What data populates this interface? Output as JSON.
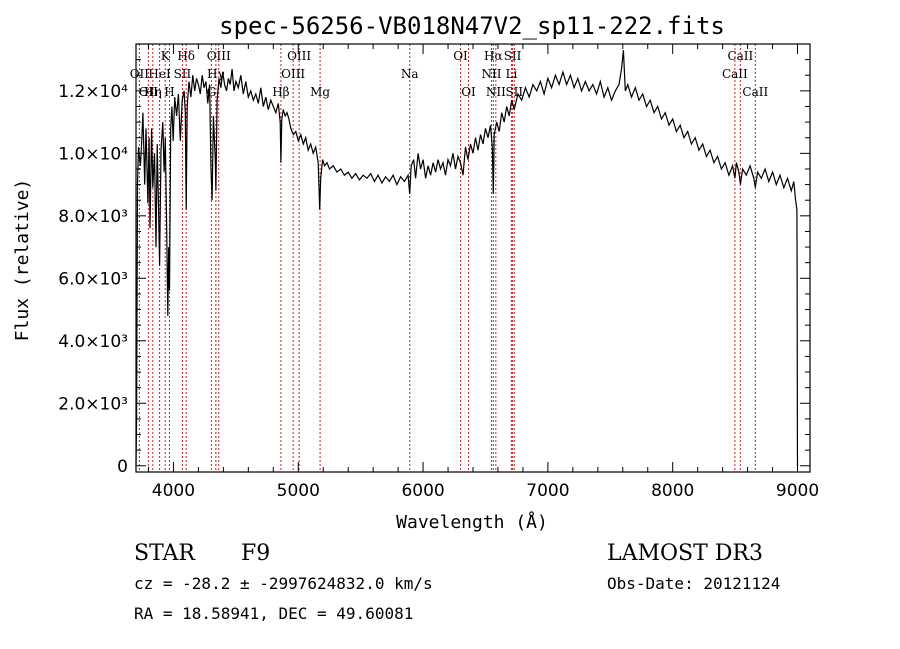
{
  "chart_data": {
    "type": "line",
    "title": "spec-56256-VB018N47V2_sp11-222.fits",
    "xlabel": "Wavelength (Å)",
    "ylabel": "Flux (relative)",
    "xlim": [
      3700,
      9100
    ],
    "ylim": [
      -200,
      13500
    ],
    "xticks": [
      {
        "value": 4000,
        "label": "4000"
      },
      {
        "value": 5000,
        "label": "5000"
      },
      {
        "value": 6000,
        "label": "6000"
      },
      {
        "value": 7000,
        "label": "7000"
      },
      {
        "value": 8000,
        "label": "8000"
      },
      {
        "value": 9000,
        "label": "9000"
      }
    ],
    "yticks": [
      {
        "value": 0,
        "label": "0"
      },
      {
        "value": 2000,
        "label": "2.0×10³"
      },
      {
        "value": 4000,
        "label": "4.0×10³"
      },
      {
        "value": 6000,
        "label": "6.0×10³"
      },
      {
        "value": 8000,
        "label": "8.0×10³"
      },
      {
        "value": 10000,
        "label": "1.0×10⁴"
      },
      {
        "value": 12000,
        "label": "1.2×10⁴"
      }
    ],
    "grid": false,
    "series": [
      {
        "color": "#000000",
        "points": [
          [
            3700,
            0
          ],
          [
            3705,
            1500
          ],
          [
            3712,
            9000
          ],
          [
            3720,
            10200
          ],
          [
            3735,
            9600
          ],
          [
            3745,
            10300
          ],
          [
            3755,
            11300
          ],
          [
            3770,
            9000
          ],
          [
            3780,
            10800
          ],
          [
            3795,
            8400
          ],
          [
            3805,
            10500
          ],
          [
            3812,
            7600
          ],
          [
            3825,
            10800
          ],
          [
            3835,
            8900
          ],
          [
            3848,
            10000
          ],
          [
            3860,
            7000
          ],
          [
            3870,
            10300
          ],
          [
            3880,
            8300
          ],
          [
            3889,
            6400
          ],
          [
            3900,
            10100
          ],
          [
            3915,
            11000
          ],
          [
            3925,
            9400
          ],
          [
            3935,
            10500
          ],
          [
            3945,
            7800
          ],
          [
            3955,
            4800
          ],
          [
            3962,
            7000
          ],
          [
            3968,
            5600
          ],
          [
            3978,
            10800
          ],
          [
            3988,
            11500
          ],
          [
            3998,
            10400
          ],
          [
            4010,
            11800
          ],
          [
            4025,
            11200
          ],
          [
            4040,
            11900
          ],
          [
            4055,
            10400
          ],
          [
            4070,
            11700
          ],
          [
            4085,
            12000
          ],
          [
            4095,
            11300
          ],
          [
            4102,
            8200
          ],
          [
            4110,
            11500
          ],
          [
            4125,
            12300
          ],
          [
            4140,
            11800
          ],
          [
            4155,
            12500
          ],
          [
            4170,
            12000
          ],
          [
            4185,
            12400
          ],
          [
            4200,
            12200
          ],
          [
            4215,
            11900
          ],
          [
            4230,
            12500
          ],
          [
            4245,
            12100
          ],
          [
            4260,
            12300
          ],
          [
            4275,
            11600
          ],
          [
            4290,
            12200
          ],
          [
            4300,
            9600
          ],
          [
            4310,
            8500
          ],
          [
            4320,
            11200
          ],
          [
            4335,
            9800
          ],
          [
            4340,
            8800
          ],
          [
            4350,
            11700
          ],
          [
            4365,
            12400
          ],
          [
            4380,
            12100
          ],
          [
            4395,
            12600
          ],
          [
            4410,
            12200
          ],
          [
            4425,
            12000
          ],
          [
            4440,
            12400
          ],
          [
            4455,
            12200
          ],
          [
            4470,
            12700
          ],
          [
            4485,
            12000
          ],
          [
            4500,
            12300
          ],
          [
            4520,
            12100
          ],
          [
            4540,
            12500
          ],
          [
            4560,
            11900
          ],
          [
            4580,
            12300
          ],
          [
            4600,
            11800
          ],
          [
            4620,
            12000
          ],
          [
            4640,
            11700
          ],
          [
            4660,
            11900
          ],
          [
            4680,
            11600
          ],
          [
            4700,
            12100
          ],
          [
            4720,
            11500
          ],
          [
            4740,
            11800
          ],
          [
            4760,
            11400
          ],
          [
            4780,
            11700
          ],
          [
            4800,
            11500
          ],
          [
            4820,
            11300
          ],
          [
            4840,
            11600
          ],
          [
            4855,
            11000
          ],
          [
            4861,
            9700
          ],
          [
            4868,
            11100
          ],
          [
            4880,
            11400
          ],
          [
            4895,
            11200
          ],
          [
            4910,
            11300
          ],
          [
            4925,
            11100
          ],
          [
            4940,
            10800
          ],
          [
            4960,
            10600
          ],
          [
            4980,
            10700
          ],
          [
            5000,
            10400
          ],
          [
            5020,
            10600
          ],
          [
            5040,
            10300
          ],
          [
            5060,
            10500
          ],
          [
            5080,
            10100
          ],
          [
            5100,
            10300
          ],
          [
            5120,
            10000
          ],
          [
            5140,
            10200
          ],
          [
            5160,
            9700
          ],
          [
            5172,
            8200
          ],
          [
            5180,
            9200
          ],
          [
            5195,
            9800
          ],
          [
            5210,
            9600
          ],
          [
            5230,
            9700
          ],
          [
            5250,
            9500
          ],
          [
            5280,
            9600
          ],
          [
            5310,
            9400
          ],
          [
            5340,
            9500
          ],
          [
            5370,
            9300
          ],
          [
            5400,
            9400
          ],
          [
            5430,
            9200
          ],
          [
            5460,
            9350
          ],
          [
            5490,
            9150
          ],
          [
            5520,
            9300
          ],
          [
            5550,
            9200
          ],
          [
            5580,
            9350
          ],
          [
            5610,
            9100
          ],
          [
            5640,
            9300
          ],
          [
            5670,
            9050
          ],
          [
            5700,
            9250
          ],
          [
            5730,
            9100
          ],
          [
            5760,
            9300
          ],
          [
            5790,
            9000
          ],
          [
            5820,
            9250
          ],
          [
            5850,
            9100
          ],
          [
            5880,
            9300
          ],
          [
            5893,
            8700
          ],
          [
            5905,
            9600
          ],
          [
            5925,
            9800
          ],
          [
            5940,
            9200
          ],
          [
            5960,
            10000
          ],
          [
            5980,
            9500
          ],
          [
            6000,
            9800
          ],
          [
            6020,
            9200
          ],
          [
            6040,
            9600
          ],
          [
            6060,
            9300
          ],
          [
            6080,
            9700
          ],
          [
            6100,
            9400
          ],
          [
            6120,
            9800
          ],
          [
            6140,
            9500
          ],
          [
            6160,
            9700
          ],
          [
            6180,
            9300
          ],
          [
            6200,
            9800
          ],
          [
            6220,
            9600
          ],
          [
            6240,
            10000
          ],
          [
            6260,
            9500
          ],
          [
            6280,
            9900
          ],
          [
            6300,
            9700
          ],
          [
            6320,
            9300
          ],
          [
            6340,
            10200
          ],
          [
            6360,
            9800
          ],
          [
            6380,
            10300
          ],
          [
            6400,
            10000
          ],
          [
            6420,
            10500
          ],
          [
            6440,
            10100
          ],
          [
            6460,
            10600
          ],
          [
            6480,
            10300
          ],
          [
            6500,
            10800
          ],
          [
            6520,
            10500
          ],
          [
            6540,
            10900
          ],
          [
            6555,
            10200
          ],
          [
            6563,
            8700
          ],
          [
            6570,
            10600
          ],
          [
            6590,
            11000
          ],
          [
            6610,
            10700
          ],
          [
            6630,
            11300
          ],
          [
            6650,
            11000
          ],
          [
            6670,
            11500
          ],
          [
            6690,
            11200
          ],
          [
            6710,
            11700
          ],
          [
            6730,
            11400
          ],
          [
            6760,
            11900
          ],
          [
            6790,
            11700
          ],
          [
            6820,
            12100
          ],
          [
            6850,
            11800
          ],
          [
            6880,
            12200
          ],
          [
            6910,
            12000
          ],
          [
            6940,
            12300
          ],
          [
            6970,
            11900
          ],
          [
            7000,
            12400
          ],
          [
            7030,
            12100
          ],
          [
            7060,
            12500
          ],
          [
            7090,
            12200
          ],
          [
            7120,
            12600
          ],
          [
            7150,
            12200
          ],
          [
            7180,
            12500
          ],
          [
            7210,
            12100
          ],
          [
            7240,
            12400
          ],
          [
            7270,
            12000
          ],
          [
            7300,
            12300
          ],
          [
            7330,
            12000
          ],
          [
            7360,
            12200
          ],
          [
            7390,
            11900
          ],
          [
            7420,
            12300
          ],
          [
            7450,
            11800
          ],
          [
            7480,
            12100
          ],
          [
            7510,
            11700
          ],
          [
            7540,
            12000
          ],
          [
            7570,
            12200
          ],
          [
            7590,
            12700
          ],
          [
            7605,
            13300
          ],
          [
            7620,
            12000
          ],
          [
            7640,
            12200
          ],
          [
            7670,
            11800
          ],
          [
            7700,
            12100
          ],
          [
            7730,
            11700
          ],
          [
            7760,
            11900
          ],
          [
            7790,
            11500
          ],
          [
            7820,
            11700
          ],
          [
            7850,
            11300
          ],
          [
            7880,
            11500
          ],
          [
            7910,
            11100
          ],
          [
            7940,
            11300
          ],
          [
            7970,
            10900
          ],
          [
            8000,
            11100
          ],
          [
            8030,
            10700
          ],
          [
            8060,
            10900
          ],
          [
            8090,
            10500
          ],
          [
            8120,
            10700
          ],
          [
            8150,
            10300
          ],
          [
            8180,
            10500
          ],
          [
            8210,
            10100
          ],
          [
            8240,
            10300
          ],
          [
            8270,
            9900
          ],
          [
            8300,
            10100
          ],
          [
            8330,
            9700
          ],
          [
            8360,
            9900
          ],
          [
            8390,
            9500
          ],
          [
            8420,
            9700
          ],
          [
            8450,
            9300
          ],
          [
            8480,
            9600
          ],
          [
            8498,
            9200
          ],
          [
            8510,
            9700
          ],
          [
            8530,
            9400
          ],
          [
            8542,
            9000
          ],
          [
            8560,
            9500
          ],
          [
            8590,
            9300
          ],
          [
            8620,
            9600
          ],
          [
            8650,
            9200
          ],
          [
            8662,
            8900
          ],
          [
            8680,
            9400
          ],
          [
            8710,
            9200
          ],
          [
            8740,
            9500
          ],
          [
            8770,
            9100
          ],
          [
            8800,
            9400
          ],
          [
            8830,
            9000
          ],
          [
            8860,
            9300
          ],
          [
            8890,
            8900
          ],
          [
            8920,
            9200
          ],
          [
            8950,
            8800
          ],
          [
            8970,
            9100
          ],
          [
            8985,
            8500
          ],
          [
            8995,
            8200
          ],
          [
            8997,
            6500
          ],
          [
            8999,
            800
          ],
          [
            9000,
            0
          ]
        ]
      }
    ],
    "lines": [
      {
        "wl": 3727,
        "label": "OII",
        "row": 1
      },
      {
        "wl": 3799,
        "label": "OII",
        "row": 2
      },
      {
        "wl": 3835,
        "label": "Hη",
        "row": 2
      },
      {
        "wl": 3889,
        "label": "HeI",
        "row": 1
      },
      {
        "wl": 3934,
        "label": "K",
        "row": 0
      },
      {
        "wl": 3968,
        "label": "H",
        "row": 2
      },
      {
        "wl": 4072,
        "label": "SII",
        "row": 1
      },
      {
        "wl": 4102,
        "label": "Hδ",
        "row": 0
      },
      {
        "wl": 4304,
        "label": "G",
        "row": 2
      },
      {
        "wl": 4340,
        "label": "Hγ",
        "row": 1
      },
      {
        "wl": 4363,
        "label": "OIII",
        "row": 0
      },
      {
        "wl": 4861,
        "label": "Hβ",
        "row": 2
      },
      {
        "wl": 4959,
        "label": "OIII",
        "row": 1
      },
      {
        "wl": 5007,
        "label": "OIII",
        "row": 0
      },
      {
        "wl": 5175,
        "label": "Mg",
        "row": 2
      },
      {
        "wl": 5893,
        "label": "Na",
        "row": 1
      },
      {
        "wl": 6300,
        "label": "OI",
        "row": 0
      },
      {
        "wl": 6364,
        "label": "OI",
        "row": 2
      },
      {
        "wl": 6548,
        "label": "NII",
        "row": 1
      },
      {
        "wl": 6563,
        "label": "Hα",
        "row": 0
      },
      {
        "wl": 6583,
        "label": "NII",
        "row": 2
      },
      {
        "wl": 6708,
        "label": "Li",
        "row": 1
      },
      {
        "wl": 6717,
        "label": "SII",
        "row": 0
      },
      {
        "wl": 6731,
        "label": "SII",
        "row": 2
      },
      {
        "wl": 8498,
        "label": "CaII",
        "row": 1
      },
      {
        "wl": 8542,
        "label": "CaII",
        "row": 0
      },
      {
        "wl": 8662,
        "label": "CaII",
        "row": 2
      }
    ],
    "lines_color": "#cc2222"
  },
  "info": {
    "star": "STAR",
    "subclass": "F9",
    "survey": "LAMOST DR3",
    "cz": "cz = -28.2 ± -2997624832.0 km/s",
    "obsdate": "Obs-Date: 20121124",
    "coords": "RA =  18.58941, DEC =  49.60081"
  }
}
